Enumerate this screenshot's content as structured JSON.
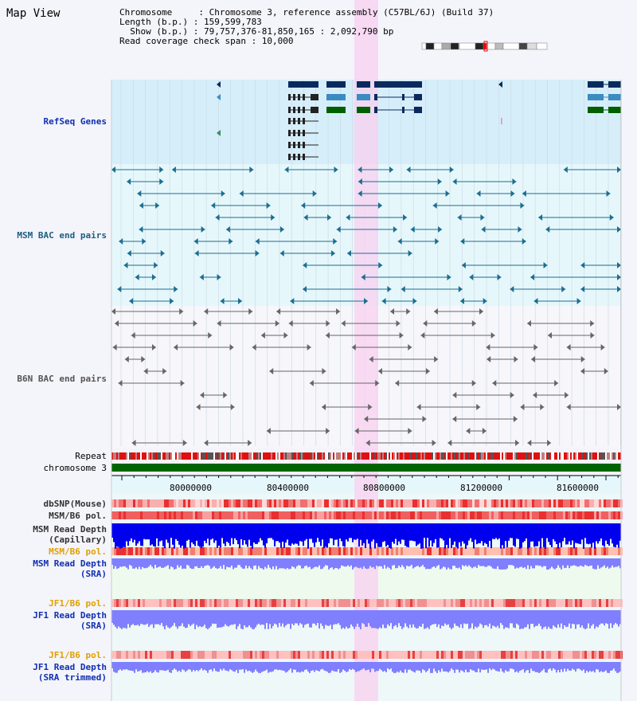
{
  "title": "Map View",
  "info": {
    "line1": "Chromosome     : Chromosome 3, reference assembly (C57BL/6J) (Build 37)",
    "line2": "Length (b.p.) : 159,599,783",
    "line3": "  Show (b.p.) : 79,757,376-81,850,165 : 2,092,790 bp",
    "line4": "Read coverage check span : 10,000"
  },
  "tracks": {
    "refseq": "RefSeq Genes",
    "msm_bac": "MSM BAC end pairs",
    "b6n_bac": "B6N BAC end pairs",
    "repeat": "Repeat",
    "chromosome": "chromosome 3",
    "dbsnp": "dbSNP(Mouse)",
    "msm_b6_pol": "MSM/B6 pol.",
    "msm_depth_cap_1": "MSM Read Depth",
    "msm_depth_cap_2": "(Capillary)",
    "msm_b6_pol2": "MSM/B6 pol.",
    "msm_depth_sra_1": "MSM Read Depth",
    "msm_depth_sra_2": "(SRA)",
    "jf1_b6_pol": "JF1/B6 pol.",
    "jf1_depth_1": "JF1 Read Depth",
    "jf1_depth_2": "(SRA)",
    "jf1_b6_pol2": "JF1/B6 pol.",
    "jf1_trim_1": "JF1 Read Depth",
    "jf1_trim_2": "(SRA trimmed)"
  },
  "axis": {
    "ticks": [
      "80000000",
      "80400000",
      "80800000",
      "81200000",
      "81600000"
    ]
  },
  "colors": {
    "refseq_bg": "#d6eefa",
    "bac_bg": "#e6f7fb",
    "gene_dark": "#0a2a5e",
    "gene_mid": "#3a8cc0",
    "gene_green": "#006000",
    "msm_bac": "#1c6e90",
    "b6n_bac": "#666666",
    "highlight": "#f8d0f0",
    "chrom_green": "#006400",
    "depth_blue": "#0000ee",
    "sra_blue": "#7f7fff"
  }
}
